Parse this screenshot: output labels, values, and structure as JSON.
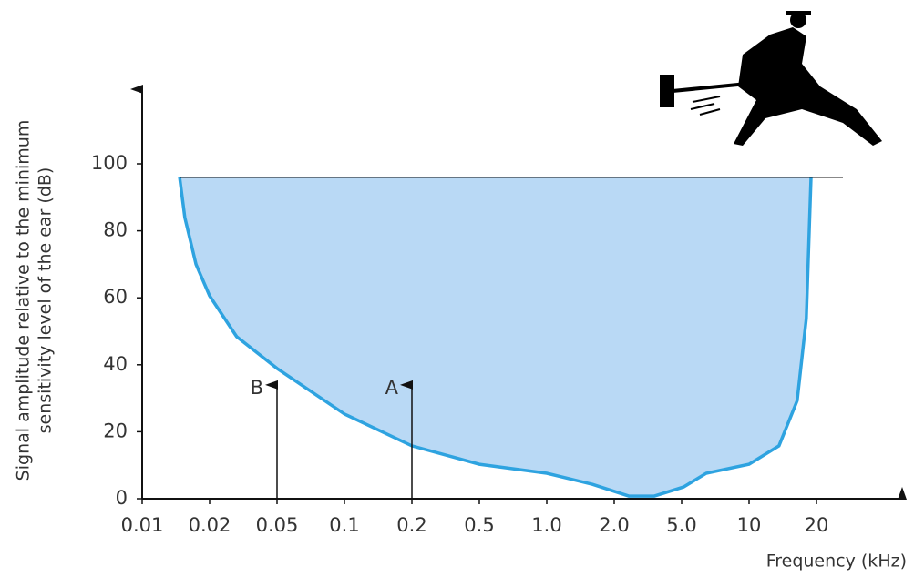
{
  "chart_data": {
    "type": "line",
    "x_axis_label": "Frequency (kHz)",
    "y_axis_label": [
      "Signal amplitude relative to the minimum",
      "sensitivity level of the ear (dB)"
    ],
    "x": [
      0.0147,
      0.0155,
      0.0174,
      0.02,
      0.0289,
      0.05,
      0.1,
      0.2,
      0.5,
      0.755,
      1.0,
      1.6,
      2.44,
      3.45,
      5.1,
      6.44,
      10,
      13.6,
      16.4,
      18.0,
      18.9
    ],
    "series": [
      {
        "color": "#2ea3e0",
        "fill": "#b9d9f5",
        "values": [
          96,
          84,
          70,
          60.6,
          48.4,
          38.9,
          25.3,
          15.8,
          10.3,
          8.7,
          7.6,
          4.3,
          0.8,
          0.8,
          3.5,
          7.6,
          10.3,
          15.8,
          29.3,
          53.8,
          96
        ]
      }
    ],
    "xlim": [
      0.01,
      20
    ],
    "xticks": [
      0.01,
      0.02,
      0.05,
      0.1,
      0.2,
      0.5,
      {
        "value": 1,
        "label": "1.0"
      },
      {
        "value": 2,
        "label": "2.0"
      },
      {
        "value": 5,
        "label": "5.0"
      },
      10,
      20
    ],
    "ylim": [
      0,
      100
    ],
    "yticks": [
      0,
      20,
      40,
      60,
      80,
      100
    ],
    "ceiling": 96,
    "tones": [
      {
        "label": "B",
        "frequency": 0.05,
        "level": 34
      },
      {
        "label": "A",
        "frequency": 0.2,
        "level": 34
      }
    ]
  }
}
